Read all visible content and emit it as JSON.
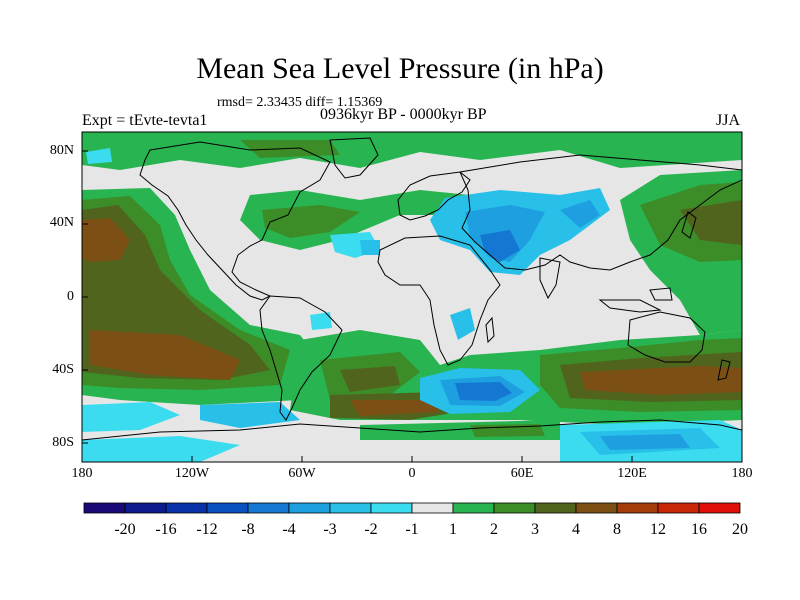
{
  "map": {
    "title": "Mean Sea Level Pressure (in hPa)",
    "stats": "rmsd= 2.33435 diff= 1.15369",
    "experiment": "Expt = tEvte-tevta1",
    "period": "0936kyr BP - 0000kyr BP",
    "season": "JJA",
    "lat_labels": [
      "80N",
      "40N",
      "0",
      "40S",
      "80S"
    ],
    "lon_labels": [
      "180",
      "120W",
      "60W",
      "0",
      "60E",
      "120E",
      "180"
    ],
    "colorbar": {
      "labels": [
        "-20",
        "-16",
        "-12",
        "-8",
        "-4",
        "-3",
        "-2",
        "-1",
        "1",
        "2",
        "3",
        "4",
        "8",
        "12",
        "16",
        "20"
      ],
      "colors": [
        "#1a0a78",
        "#0c1c8c",
        "#0a32a8",
        "#0a50c0",
        "#1478d2",
        "#1ea0e0",
        "#28c0e8",
        "#3cdcf0",
        "#e6e6e6",
        "#28b450",
        "#3c8c28",
        "#50641e",
        "#7c5014",
        "#a43c0a",
        "#c82808",
        "#e01008"
      ]
    },
    "palette": {
      "land_outline": "#000000",
      "neutral": "#e6e6e6",
      "green_light": "#28b450",
      "green_dark": "#3c8c28",
      "olive": "#50641e",
      "brown": "#7c5014",
      "cyan": "#3cdcf0",
      "sky": "#28c0e8",
      "blue": "#1478d2"
    }
  }
}
